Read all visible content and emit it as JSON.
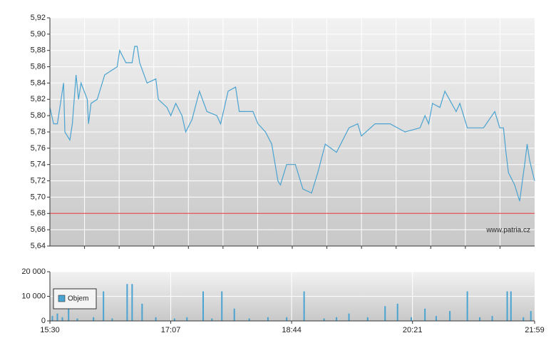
{
  "chart_data": [
    {
      "type": "line",
      "color": "#4aa3d0",
      "watermark": "www.patria.cz",
      "xlim": [
        "15:30",
        "21:59"
      ],
      "ylim": [
        5.64,
        5.92
      ],
      "yticks": [
        {
          "value": 5.64,
          "label": "5,64"
        },
        {
          "value": 5.66,
          "label": "5,66"
        },
        {
          "value": 5.68,
          "label": "5,68"
        },
        {
          "value": 5.7,
          "label": "5,70"
        },
        {
          "value": 5.72,
          "label": "5,72"
        },
        {
          "value": 5.74,
          "label": "5,74"
        },
        {
          "value": 5.76,
          "label": "5,76"
        },
        {
          "value": 5.78,
          "label": "5,78"
        },
        {
          "value": 5.8,
          "label": "5,80"
        },
        {
          "value": 5.82,
          "label": "5,82"
        },
        {
          "value": 5.84,
          "label": "5,84"
        },
        {
          "value": 5.86,
          "label": "5,86"
        },
        {
          "value": 5.88,
          "label": "5,88"
        },
        {
          "value": 5.9,
          "label": "5,90"
        },
        {
          "value": 5.92,
          "label": "5,92"
        }
      ],
      "reference_line": {
        "value": 5.68,
        "color": "#e05050"
      },
      "grid": true,
      "x": [
        "15:30",
        "15:33",
        "15:36",
        "15:39",
        "15:41",
        "15:42",
        "15:46",
        "15:48",
        "15:51",
        "15:53",
        "15:55",
        "16:00",
        "16:01",
        "16:03",
        "16:08",
        "16:14",
        "16:19",
        "16:24",
        "16:26",
        "16:31",
        "16:36",
        "16:38",
        "16:40",
        "16:42",
        "16:48",
        "16:55",
        "16:57",
        "17:04",
        "17:07",
        "17:11",
        "17:16",
        "17:19",
        "17:24",
        "17:30",
        "17:36",
        "17:44",
        "17:47",
        "17:53",
        "17:59",
        "18:02",
        "18:13",
        "18:17",
        "18:23",
        "18:28",
        "18:33",
        "18:35",
        "18:40",
        "18:47",
        "18:53",
        "19:00",
        "19:05",
        "19:11",
        "19:20",
        "19:30",
        "19:37",
        "19:40",
        "19:51",
        "20:03",
        "20:15",
        "20:27",
        "20:31",
        "20:34",
        "20:37",
        "20:43",
        "20:47",
        "20:56",
        "20:59",
        "21:05",
        "21:18",
        "21:27",
        "21:31",
        "21:34",
        "21:36",
        "21:38",
        "21:43",
        "21:47",
        "21:51",
        "21:53",
        "21:55",
        "21:59"
      ],
      "values": [
        5.81,
        5.79,
        5.79,
        5.82,
        5.84,
        5.78,
        5.77,
        5.79,
        5.85,
        5.82,
        5.84,
        5.82,
        5.79,
        5.815,
        5.82,
        5.85,
        5.855,
        5.86,
        5.88,
        5.865,
        5.865,
        5.885,
        5.885,
        5.865,
        5.84,
        5.845,
        5.82,
        5.81,
        5.8,
        5.815,
        5.8,
        5.78,
        5.795,
        5.83,
        5.805,
        5.8,
        5.79,
        5.83,
        5.835,
        5.805,
        5.805,
        5.79,
        5.78,
        5.765,
        5.72,
        5.715,
        5.74,
        5.74,
        5.71,
        5.705,
        5.73,
        5.765,
        5.755,
        5.785,
        5.79,
        5.775,
        5.79,
        5.79,
        5.78,
        5.785,
        5.8,
        5.79,
        5.815,
        5.81,
        5.83,
        5.805,
        5.815,
        5.785,
        5.785,
        5.805,
        5.785,
        5.785,
        5.755,
        5.73,
        5.715,
        5.695,
        5.74,
        5.765,
        5.745,
        5.72
      ]
    },
    {
      "type": "bar",
      "xlim": [
        "15:30",
        "21:59"
      ],
      "xticks": [
        "15:30",
        "17:07",
        "18:44",
        "20:21",
        "21:59"
      ],
      "ylim": [
        0,
        20000
      ],
      "yticks": [
        0,
        {
          "value": 10000,
          "label": "10 000"
        },
        {
          "value": 20000,
          "label": "20 000"
        }
      ],
      "grid": true,
      "x": [
        "15:32",
        "15:36",
        "15:40",
        "15:45",
        "15:52",
        "16:05",
        "16:13",
        "16:20",
        "16:32",
        "16:36",
        "16:44",
        "16:55",
        "17:10",
        "17:20",
        "17:33",
        "17:40",
        "17:48",
        "17:58",
        "18:10",
        "18:25",
        "18:40",
        "18:54",
        "19:10",
        "19:20",
        "19:30",
        "19:45",
        "19:59",
        "20:09",
        "20:20",
        "20:31",
        "20:40",
        "20:51",
        "21:05",
        "21:15",
        "21:25",
        "21:37",
        "21:40",
        "21:50",
        "21:56"
      ],
      "series": [
        {
          "name": "Objem",
          "color": "#4aa3d0",
          "values": [
            2000,
            3000,
            1500,
            6000,
            1000,
            1500,
            12000,
            1000,
            15000,
            15000,
            7000,
            1500,
            1000,
            1500,
            12000,
            1000,
            12000,
            5000,
            1000,
            1500,
            1500,
            12000,
            1000,
            1500,
            3000,
            1500,
            6000,
            7000,
            1500,
            5000,
            2000,
            4000,
            12000,
            1500,
            2000,
            12000,
            12000,
            1500,
            4000
          ]
        }
      ]
    }
  ]
}
